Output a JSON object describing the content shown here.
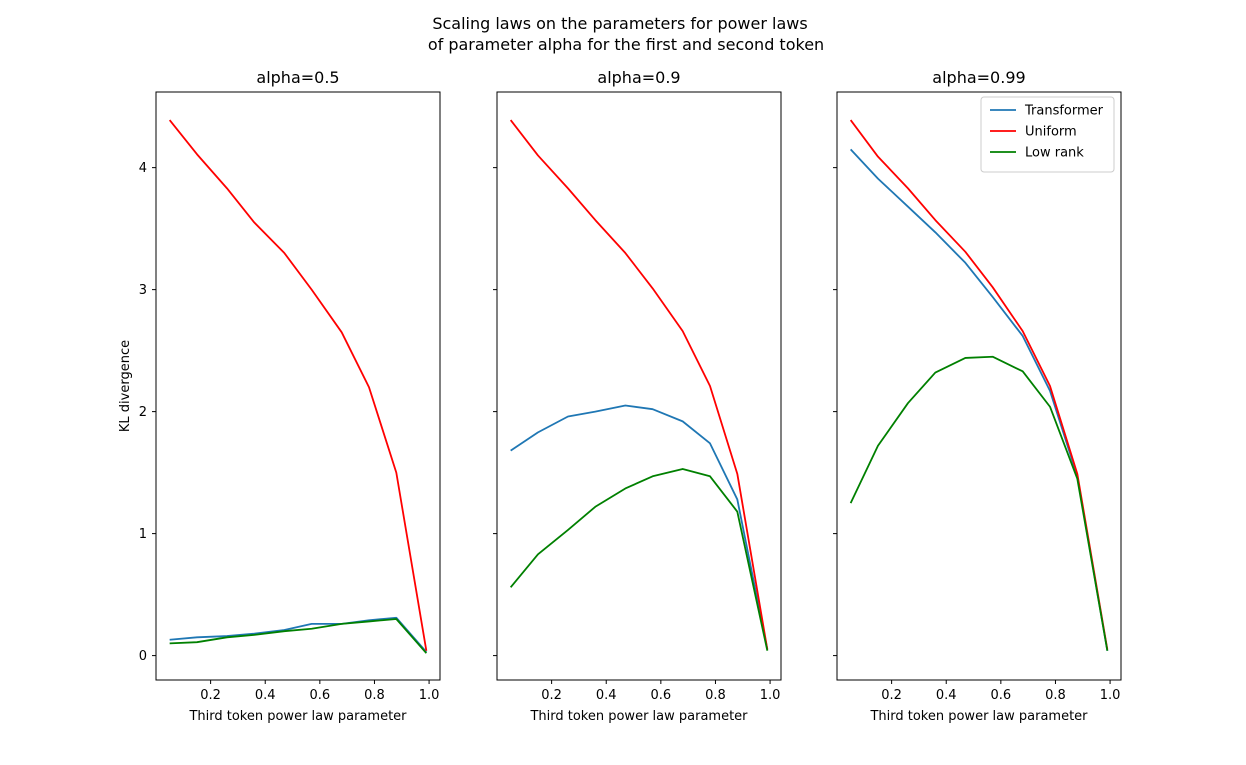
{
  "figure": {
    "suptitle_line1": "Scaling laws on the parameters for power laws",
    "suptitle_line2": "of parameter alpha for the first and second token"
  },
  "chart_data": [
    {
      "type": "line",
      "title": "alpha=0.5",
      "xlabel": "Third token power law parameter",
      "ylabel": "KL divergence",
      "xlim": [
        0.0,
        1.04
      ],
      "ylim": [
        -0.2,
        4.62
      ],
      "x_ticks": [
        0.2,
        0.4,
        0.6,
        0.8,
        1.0
      ],
      "y_ticks": [
        0,
        1,
        2,
        3,
        4
      ],
      "x": [
        0.05,
        0.15,
        0.26,
        0.36,
        0.47,
        0.57,
        0.68,
        0.78,
        0.88,
        0.99
      ],
      "series": [
        {
          "name": "Transformer",
          "color": "#1f77b4",
          "values": [
            0.13,
            0.15,
            0.16,
            0.18,
            0.21,
            0.26,
            0.26,
            0.29,
            0.31,
            0.03
          ]
        },
        {
          "name": "Uniform",
          "color": "#ff0000",
          "values": [
            4.39,
            4.11,
            3.83,
            3.55,
            3.3,
            3.0,
            2.65,
            2.2,
            1.5,
            0.04
          ]
        },
        {
          "name": "Low rank",
          "color": "#008000",
          "values": [
            0.1,
            0.11,
            0.15,
            0.17,
            0.2,
            0.22,
            0.26,
            0.28,
            0.3,
            0.02
          ]
        }
      ],
      "legend": null
    },
    {
      "type": "line",
      "title": "alpha=0.9",
      "xlabel": "Third token power law parameter",
      "ylabel": "",
      "xlim": [
        0.0,
        1.04
      ],
      "ylim": [
        -0.2,
        4.62
      ],
      "x_ticks": [
        0.2,
        0.4,
        0.6,
        0.8,
        1.0
      ],
      "y_ticks": [
        0,
        1,
        2,
        3,
        4
      ],
      "x": [
        0.05,
        0.15,
        0.26,
        0.36,
        0.47,
        0.57,
        0.68,
        0.78,
        0.88,
        0.99
      ],
      "series": [
        {
          "name": "Transformer",
          "color": "#1f77b4",
          "values": [
            1.68,
            1.83,
            1.96,
            2.0,
            2.05,
            2.02,
            1.92,
            1.74,
            1.28,
            0.05
          ]
        },
        {
          "name": "Uniform",
          "color": "#ff0000",
          "values": [
            4.39,
            4.1,
            3.83,
            3.57,
            3.3,
            3.01,
            2.66,
            2.21,
            1.49,
            0.05
          ]
        },
        {
          "name": "Low rank",
          "color": "#008000",
          "values": [
            0.56,
            0.83,
            1.03,
            1.22,
            1.37,
            1.47,
            1.53,
            1.47,
            1.18,
            0.04
          ]
        }
      ],
      "legend": null
    },
    {
      "type": "line",
      "title": "alpha=0.99",
      "xlabel": "Third token power law parameter",
      "ylabel": "",
      "xlim": [
        0.0,
        1.04
      ],
      "ylim": [
        -0.2,
        4.62
      ],
      "x_ticks": [
        0.2,
        0.4,
        0.6,
        0.8,
        1.0
      ],
      "y_ticks": [
        0,
        1,
        2,
        3,
        4
      ],
      "x": [
        0.05,
        0.15,
        0.26,
        0.36,
        0.47,
        0.57,
        0.68,
        0.78,
        0.88,
        0.99
      ],
      "series": [
        {
          "name": "Transformer",
          "color": "#1f77b4",
          "values": [
            4.15,
            3.91,
            3.68,
            3.47,
            3.22,
            2.94,
            2.62,
            2.17,
            1.47,
            0.04
          ]
        },
        {
          "name": "Uniform",
          "color": "#ff0000",
          "values": [
            4.39,
            4.09,
            3.83,
            3.57,
            3.31,
            3.02,
            2.66,
            2.21,
            1.49,
            0.05
          ]
        },
        {
          "name": "Low rank",
          "color": "#008000",
          "values": [
            1.25,
            1.72,
            2.07,
            2.32,
            2.44,
            2.45,
            2.33,
            2.04,
            1.45,
            0.04
          ]
        }
      ],
      "legend": {
        "placement": "top-right",
        "entries": [
          "Transformer",
          "Uniform",
          "Low rank"
        ]
      }
    }
  ]
}
